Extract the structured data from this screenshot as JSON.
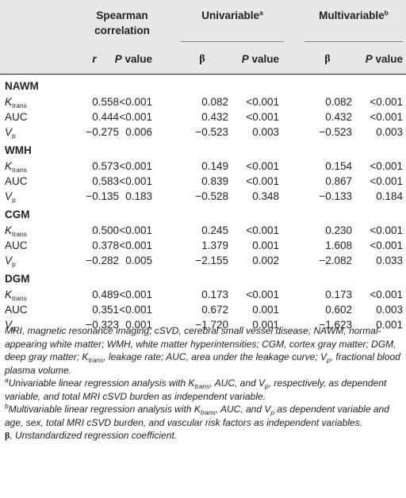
{
  "headers": {
    "spearman_line1": "Spearman",
    "spearman_line2": "correlation",
    "univariable": "Univariable",
    "univariable_sup": "a",
    "multivariable": "Multivariable",
    "multivariable_sup": "b",
    "r": "r",
    "p_value_italic": "P",
    "p_value_rest": " value",
    "beta": "β"
  },
  "groups": [
    {
      "name": "NAWM",
      "rows": [
        {
          "label": "K",
          "sub": "trans",
          "italic": true,
          "r": "0.558",
          "p1": "<0.001",
          "b1": "0.082",
          "p2": "<0.001",
          "b2": "0.082",
          "p3": "<0.001"
        },
        {
          "label": "AUC",
          "sub": "",
          "italic": false,
          "r": "0.444",
          "p1": "<0.001",
          "b1": "0.432",
          "p2": "<0.001",
          "b2": "0.432",
          "p3": "<0.001"
        },
        {
          "label": "V",
          "sub": "p",
          "italic": true,
          "r": "−0.275",
          "p1": "0.006",
          "b1": "−0.523",
          "p2": "0.003",
          "b2": "−0.523",
          "p3": "0.003"
        }
      ]
    },
    {
      "name": "WMH",
      "rows": [
        {
          "label": "K",
          "sub": "trans",
          "italic": true,
          "r": "0.573",
          "p1": "<0.001",
          "b1": "0.149",
          "p2": "<0.001",
          "b2": "0.154",
          "p3": "<0.001"
        },
        {
          "label": "AUC",
          "sub": "",
          "italic": false,
          "r": "0.583",
          "p1": "<0.001",
          "b1": "0.839",
          "p2": "<0.001",
          "b2": "0.867",
          "p3": "<0.001"
        },
        {
          "label": "V",
          "sub": "p",
          "italic": true,
          "r": "−0.135",
          "p1": "0.183",
          "b1": "−0.528",
          "p2": "0.348",
          "b2": "−0.133",
          "p3": "0.184"
        }
      ]
    },
    {
      "name": "CGM",
      "rows": [
        {
          "label": "K",
          "sub": "trans",
          "italic": true,
          "r": "0.500",
          "p1": "<0.001",
          "b1": "0.245",
          "p2": "<0.001",
          "b2": "0.230",
          "p3": "<0.001"
        },
        {
          "label": "AUC",
          "sub": "",
          "italic": false,
          "r": "0.378",
          "p1": "<0.001",
          "b1": "1.379",
          "p2": "0.001",
          "b2": "1.608",
          "p3": "<0.001"
        },
        {
          "label": "V",
          "sub": "p",
          "italic": true,
          "r": "−0.282",
          "p1": "0.005",
          "b1": "−2.155",
          "p2": "0.002",
          "b2": "−2.082",
          "p3": "0.033"
        }
      ]
    },
    {
      "name": "DGM",
      "rows": [
        {
          "label": "K",
          "sub": "trans",
          "italic": true,
          "r": "0.489",
          "p1": "<0.001",
          "b1": "0.173",
          "p2": "<0.001",
          "b2": "0.173",
          "p3": "<0.001"
        },
        {
          "label": "AUC",
          "sub": "",
          "italic": false,
          "r": "0.351",
          "p1": "<0.001",
          "b1": "0.672",
          "p2": "0.001",
          "b2": "0.602",
          "p3": "0.003"
        },
        {
          "label": "V",
          "sub": "p",
          "italic": true,
          "r": "−0.323",
          "p1": "0.001",
          "b1": "−1.720",
          "p2": "0.001",
          "b2": "−1.623",
          "p3": "0.001"
        }
      ]
    }
  ],
  "notes": {
    "abbrev": "MRI, magnetic resonance imaging; cSVD, cerebral small vessel disease; NAWM, normal-appearing white matter; WMH, white matter hyperintensities; CGM, cortex gray matter; DGM, deep gray matter; Ktrans, leakage rate; AUC, area under the leakage curve; Vp, fractional blood plasma volume.",
    "note_a": "aUnivariable linear regression analysis with Ktrans, AUC, and Vp, respectively, as dependent variable, and total MRI cSVD burden as independent variable.",
    "note_b": "bMultivariable linear regression analysis with Ktrans, AUC, and Vp as dependent variable and age, sex, total MRI cSVD burden, and vascular risk factors as independent variables.",
    "beta_symbol": "β",
    "beta_text": ", Unstandardized regression coefficient."
  }
}
